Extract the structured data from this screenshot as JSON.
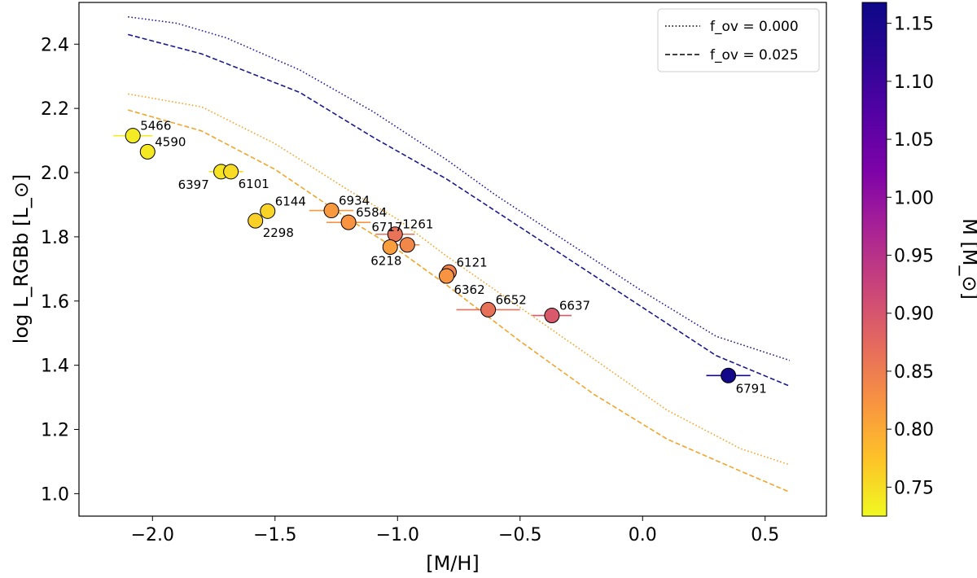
{
  "chart_data": {
    "type": "scatter",
    "xlabel": "[M/H]",
    "ylabel": "log L_RGBb [L_⊙]",
    "xlim": [
      -2.3,
      0.75
    ],
    "ylim": [
      0.93,
      2.53
    ],
    "xticks": [
      -2.0,
      -1.5,
      -1.0,
      -0.5,
      0.0,
      0.5
    ],
    "xtick_labels": [
      "−2.0",
      "−1.5",
      "−1.0",
      "−0.5",
      "0.0",
      "0.5"
    ],
    "yticks": [
      1.0,
      1.2,
      1.4,
      1.6,
      1.8,
      2.0,
      2.2,
      2.4
    ],
    "ytick_labels": [
      "1.0",
      "1.2",
      "1.4",
      "1.6",
      "1.8",
      "2.0",
      "2.2",
      "2.4"
    ],
    "legend": {
      "position": "top-right",
      "entries": [
        {
          "label": "f_ov = 0.000",
          "style": "dotted"
        },
        {
          "label": "f_ov = 0.025",
          "style": "dashed"
        }
      ]
    },
    "colorbar": {
      "label": "M [M_⊙]",
      "range": [
        0.725,
        1.168
      ],
      "ticks": [
        0.75,
        0.8,
        0.85,
        0.9,
        0.95,
        1.0,
        1.05,
        1.1,
        1.15
      ],
      "tick_labels": [
        "0.75",
        "0.80",
        "0.85",
        "0.90",
        "0.95",
        "1.00",
        "1.05",
        "1.10",
        "1.15"
      ],
      "colormap": "plasma_r"
    },
    "lines": [
      {
        "name": "high-mass f_ov=0.000",
        "style": "dotted",
        "color": "#2b1a9a",
        "x": [
          -2.1,
          -1.9,
          -1.7,
          -1.4,
          -1.1,
          -0.8,
          -0.6,
          -0.3,
          0.0,
          0.3,
          0.6
        ],
        "y": [
          2.485,
          2.465,
          2.42,
          2.32,
          2.19,
          2.04,
          1.93,
          1.78,
          1.63,
          1.49,
          1.415
        ]
      },
      {
        "name": "high-mass f_ov=0.025",
        "style": "dashed",
        "color": "#1a1a8c",
        "x": [
          -2.1,
          -1.8,
          -1.4,
          -1.1,
          -0.8,
          -0.6,
          -0.3,
          0.0,
          0.3,
          0.6
        ],
        "y": [
          2.43,
          2.37,
          2.25,
          2.11,
          1.98,
          1.88,
          1.73,
          1.58,
          1.43,
          1.335
        ]
      },
      {
        "name": "low-mass f_ov=0.000",
        "style": "dotted",
        "color": "#f2a52c",
        "x": [
          -2.1,
          -1.8,
          -1.5,
          -1.2,
          -1.0,
          -0.8,
          -0.5,
          -0.2,
          0.1,
          0.4,
          0.6
        ],
        "y": [
          2.245,
          2.205,
          2.09,
          1.945,
          1.855,
          1.74,
          1.58,
          1.42,
          1.26,
          1.14,
          1.09
        ]
      },
      {
        "name": "low-mass f_ov=0.025",
        "style": "dashed",
        "color": "#f2a52c",
        "x": [
          -2.1,
          -1.8,
          -1.5,
          -1.2,
          -1.0,
          -0.8,
          -0.5,
          -0.2,
          0.1,
          0.4,
          0.6
        ],
        "y": [
          2.195,
          2.13,
          2.01,
          1.855,
          1.76,
          1.65,
          1.475,
          1.31,
          1.17,
          1.07,
          1.005
        ]
      }
    ],
    "points": [
      {
        "id": "5466",
        "x": -2.08,
        "y": 2.115,
        "mass": 0.738,
        "xerr": 0.08,
        "lx": 9,
        "ly": -7
      },
      {
        "id": "4590",
        "x": -2.02,
        "y": 2.065,
        "mass": 0.74,
        "xerr": 0.0,
        "lx": 9,
        "ly": -7
      },
      {
        "id": "6397",
        "x": -1.72,
        "y": 2.003,
        "mass": 0.745,
        "xerr": 0.05,
        "lx": -53,
        "ly": 21
      },
      {
        "id": "6101",
        "x": -1.68,
        "y": 2.003,
        "mass": 0.752,
        "xerr": 0.05,
        "lx": 9,
        "ly": 20
      },
      {
        "id": "6144",
        "x": -1.53,
        "y": 1.88,
        "mass": 0.758,
        "xerr": 0.03,
        "lx": 9,
        "ly": -7
      },
      {
        "id": "2298",
        "x": -1.58,
        "y": 1.85,
        "mass": 0.762,
        "xerr": 0.03,
        "lx": 9,
        "ly": 20
      },
      {
        "id": "6934",
        "x": -1.27,
        "y": 1.882,
        "mass": 0.818,
        "xerr": 0.09,
        "lx": 9,
        "ly": -7
      },
      {
        "id": "6584",
        "x": -1.2,
        "y": 1.845,
        "mass": 0.822,
        "xerr": 0.09,
        "lx": 9,
        "ly": -7
      },
      {
        "id": "1261",
        "x": -1.01,
        "y": 1.808,
        "mass": 0.862,
        "xerr": 0.08,
        "lx": 9,
        "ly": -7
      },
      {
        "id": "6717",
        "x": -0.96,
        "y": 1.775,
        "mass": 0.838,
        "xerr": 0.05,
        "lx": -44,
        "ly": -17
      },
      {
        "id": "6218",
        "x": -1.03,
        "y": 1.768,
        "mass": 0.812,
        "xerr": 0.0,
        "lx": -24,
        "ly": 22
      },
      {
        "id": "6121",
        "x": -0.79,
        "y": 1.69,
        "mass": 0.842,
        "xerr": 0.0,
        "lx": 9,
        "ly": -7
      },
      {
        "id": "6362",
        "x": -0.8,
        "y": 1.678,
        "mass": 0.822,
        "xerr": 0.0,
        "lx": 9,
        "ly": 22
      },
      {
        "id": "6652",
        "x": -0.63,
        "y": 1.573,
        "mass": 0.865,
        "xerr": 0.13,
        "lx": 9,
        "ly": -7
      },
      {
        "id": "6637",
        "x": -0.37,
        "y": 1.555,
        "mass": 0.895,
        "xerr": 0.08,
        "lx": 9,
        "ly": -7
      },
      {
        "id": "6791",
        "x": 0.35,
        "y": 1.368,
        "mass": 1.16,
        "xerr": 0.09,
        "lx": 9,
        "ly": 21
      }
    ]
  }
}
